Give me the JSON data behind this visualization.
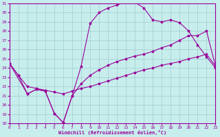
{
  "xlabel": "Windchill (Refroidissement éolien,°C)",
  "xlim": [
    0,
    23
  ],
  "ylim": [
    18,
    31
  ],
  "xticks": [
    0,
    1,
    2,
    3,
    4,
    5,
    6,
    7,
    8,
    9,
    10,
    11,
    12,
    13,
    14,
    15,
    16,
    17,
    18,
    19,
    20,
    21,
    22,
    23
  ],
  "yticks": [
    18,
    19,
    20,
    21,
    22,
    23,
    24,
    25,
    26,
    27,
    28,
    29,
    30,
    31
  ],
  "bg_color": "#c8eded",
  "line_color": "#990099",
  "grid_color": "#a0cccc",
  "line1_x": [
    0,
    1,
    2,
    3,
    4,
    5,
    6,
    7,
    8,
    9,
    10,
    11,
    12,
    13,
    14,
    15,
    16,
    17,
    18,
    19,
    20,
    21,
    22,
    23
  ],
  "line1_y": [
    24.5,
    23.2,
    21.2,
    21.7,
    21.5,
    19.1,
    18.1,
    21.0,
    24.2,
    28.8,
    30.0,
    30.5,
    30.8,
    31.2,
    31.1,
    30.5,
    29.2,
    29.0,
    29.2,
    28.9,
    28.0,
    26.5,
    25.2,
    24.0
  ],
  "line2_x": [
    0,
    2,
    3,
    4,
    5,
    6,
    7,
    8,
    9,
    10,
    11,
    12,
    13,
    14,
    15,
    16,
    17,
    18,
    19,
    20,
    21,
    22,
    23
  ],
  "line2_y": [
    24.5,
    21.2,
    21.7,
    21.5,
    19.1,
    18.1,
    21.0,
    22.3,
    23.2,
    23.8,
    24.3,
    24.7,
    25.0,
    25.3,
    25.5,
    25.8,
    26.2,
    26.5,
    27.0,
    27.5,
    27.5,
    28.0,
    24.2
  ],
  "line3_x": [
    0,
    1,
    2,
    3,
    4,
    5,
    6,
    7,
    8,
    9,
    10,
    11,
    12,
    13,
    14,
    15,
    16,
    17,
    18,
    19,
    20,
    21,
    22,
    23
  ],
  "line3_y": [
    24.5,
    23.2,
    22.0,
    21.8,
    21.6,
    21.4,
    21.2,
    21.5,
    21.8,
    22.0,
    22.3,
    22.6,
    22.9,
    23.2,
    23.5,
    23.8,
    24.0,
    24.3,
    24.5,
    24.7,
    25.0,
    25.2,
    25.5,
    24.2
  ]
}
